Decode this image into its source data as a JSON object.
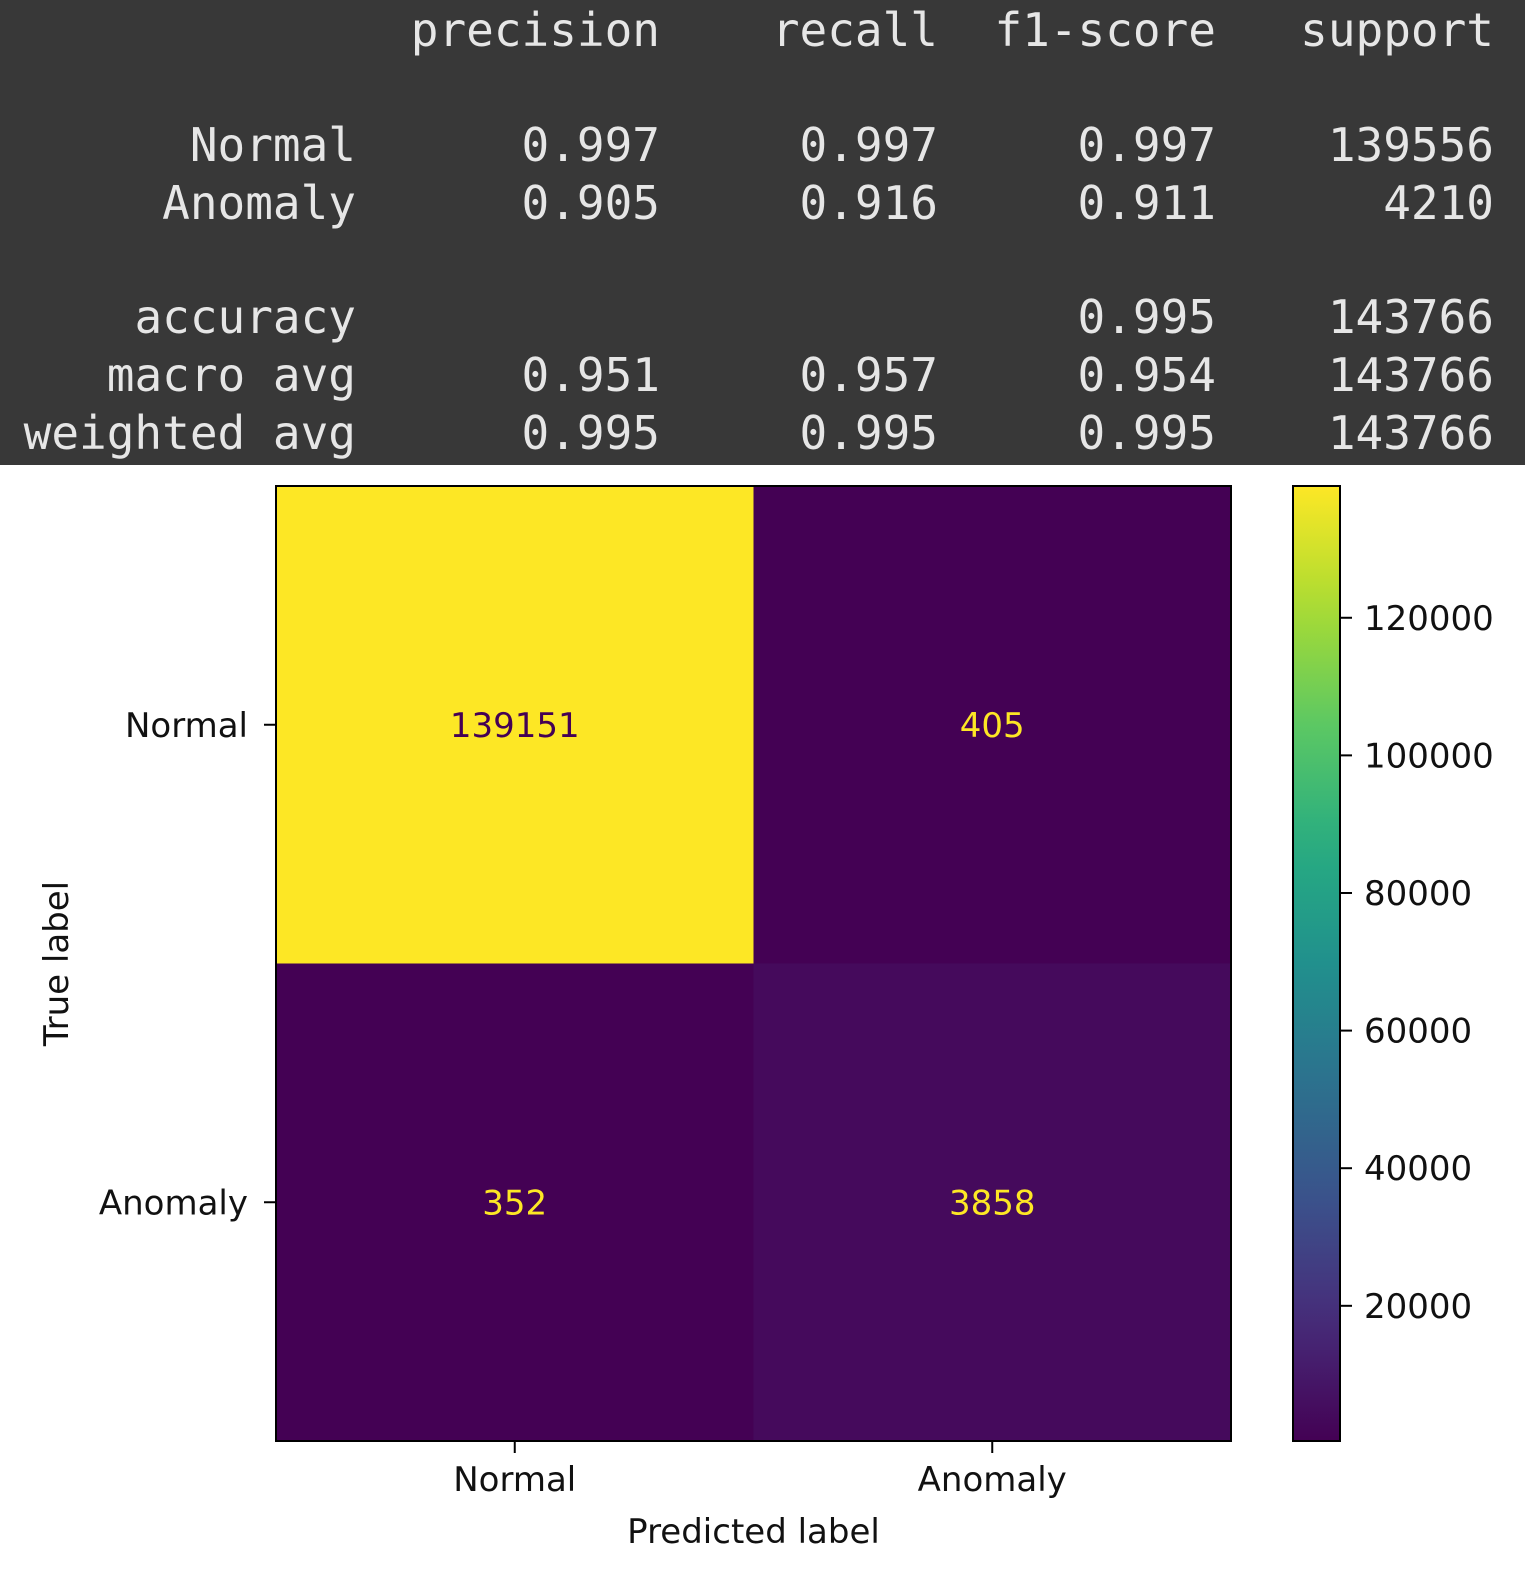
{
  "report": {
    "headers": [
      "precision",
      "recall",
      "f1-score",
      "support"
    ],
    "rows": [
      {
        "label": "Normal",
        "precision": "0.997",
        "recall": "0.997",
        "f1": "0.997",
        "support": "139556"
      },
      {
        "label": "Anomaly",
        "precision": "0.905",
        "recall": "0.916",
        "f1": "0.911",
        "support": "4210"
      },
      {
        "label": "accuracy",
        "precision": "",
        "recall": "",
        "f1": "0.995",
        "support": "143766"
      },
      {
        "label": "macro avg",
        "precision": "0.951",
        "recall": "0.957",
        "f1": "0.954",
        "support": "143766"
      },
      {
        "label": "weighted avg",
        "precision": "0.995",
        "recall": "0.995",
        "f1": "0.995",
        "support": "143766"
      }
    ],
    "colors": {
      "background": "#383838",
      "text": "#e6e6e6"
    }
  },
  "chart_data": {
    "type": "heatmap",
    "title": "",
    "xlabel": "Predicted label",
    "ylabel": "True label",
    "x_categories": [
      "Normal",
      "Anomaly"
    ],
    "y_categories": [
      "Normal",
      "Anomaly"
    ],
    "values": [
      [
        139151,
        405
      ],
      [
        352,
        3858
      ]
    ],
    "colormap": "viridis",
    "colorbar": {
      "min": 352,
      "max": 139151,
      "ticks": [
        20000,
        40000,
        60000,
        80000,
        100000,
        120000
      ]
    },
    "annotation_colors": {
      "on_dark": "#fde725",
      "on_light": "#440154"
    }
  }
}
